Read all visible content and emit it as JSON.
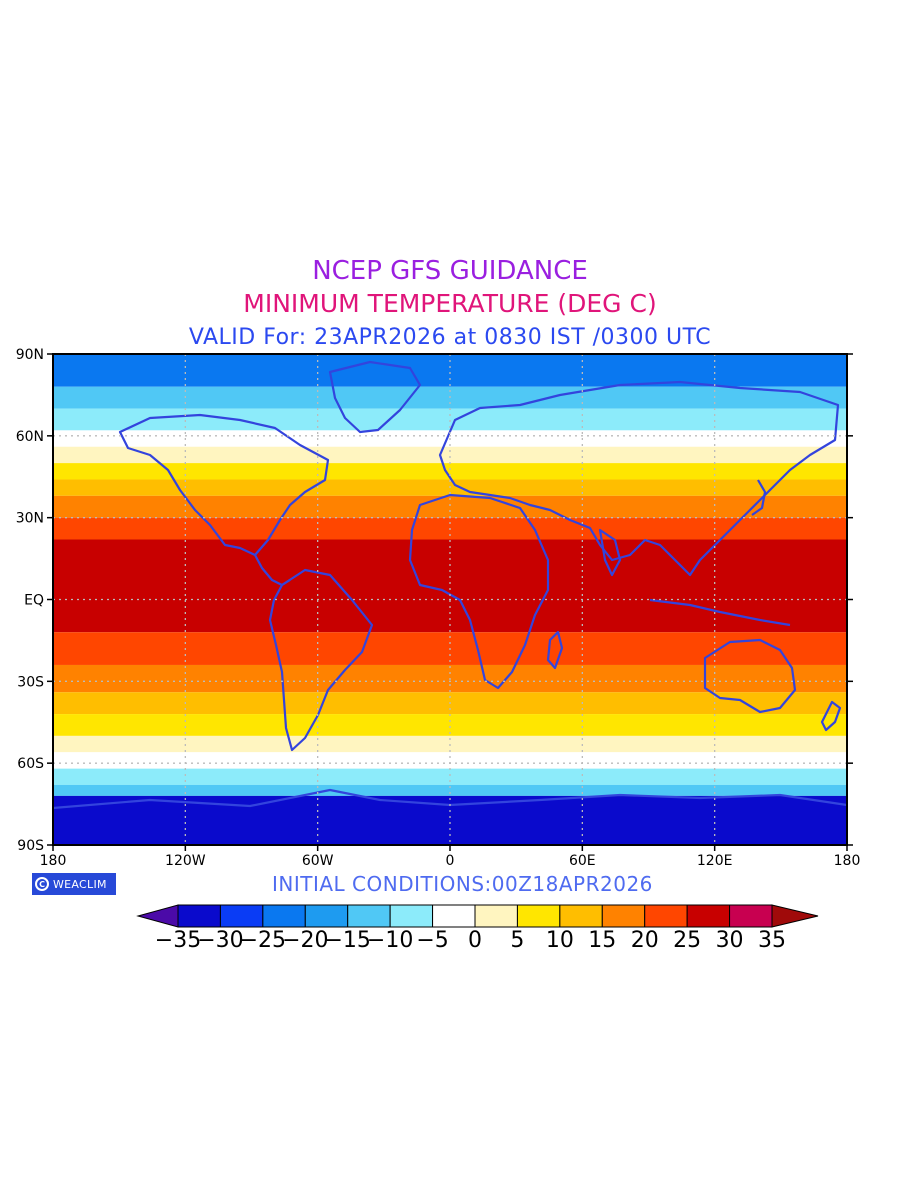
{
  "header": {
    "title": "NCEP GFS GUIDANCE",
    "subtitle": "MINIMUM TEMPERATURE (DEG C)",
    "valid": "VALID For: 23APR2026 at 0830 IST /0300 UTC",
    "title_color": "#9A1FE0",
    "subtitle_color": "#E0157A",
    "valid_color": "#2B49F0"
  },
  "axes": {
    "lat_labels": [
      "90N",
      "60N",
      "30N",
      "EQ",
      "30S",
      "60S",
      "90S"
    ],
    "lat_values": [
      90,
      60,
      30,
      0,
      -30,
      -60,
      -90
    ],
    "lon_labels": [
      "180",
      "120W",
      "60W",
      "0",
      "60E",
      "120E",
      "180"
    ],
    "lon_values": [
      -180,
      -120,
      -60,
      0,
      60,
      120,
      180
    ],
    "gridlines": "dotted"
  },
  "footer": {
    "initial_conditions": "INITIAL CONDITIONS:00Z18APR2026",
    "initial_color": "#4F6BF0",
    "brand": "WEACLIM",
    "brand_bg": "#2749D8"
  },
  "colorbar": {
    "labels": [
      "-35",
      "-30",
      "-25",
      "-20",
      "-15",
      "-10",
      "-5",
      "0",
      "5",
      "10",
      "15",
      "20",
      "25",
      "30",
      "35"
    ],
    "colors": [
      "#4B0AA8",
      "#0A0ACC",
      "#0A3CF5",
      "#0A78F0",
      "#1E9BF0",
      "#50C8F5",
      "#8CEBFA",
      "#FFFFFF",
      "#FFF5C0",
      "#FFE600",
      "#FFBE00",
      "#FF8200",
      "#FF4600",
      "#C80000",
      "#C80050",
      "#A00A0A"
    ]
  },
  "map": {
    "land_outline_color": "#3344DD",
    "temperature_bands": [
      {
        "lat_from": 90,
        "lat_to": 78,
        "value": -25
      },
      {
        "lat_from": 78,
        "lat_to": 70,
        "value": -15
      },
      {
        "lat_from": 70,
        "lat_to": 62,
        "value": -8
      },
      {
        "lat_from": 62,
        "lat_to": 56,
        "value": -2
      },
      {
        "lat_from": 56,
        "lat_to": 50,
        "value": 3
      },
      {
        "lat_from": 50,
        "lat_to": 44,
        "value": 8
      },
      {
        "lat_from": 44,
        "lat_to": 38,
        "value": 13
      },
      {
        "lat_from": 38,
        "lat_to": 30,
        "value": 18
      },
      {
        "lat_from": 30,
        "lat_to": 22,
        "value": 23
      },
      {
        "lat_from": 22,
        "lat_to": -12,
        "value": 27
      },
      {
        "lat_from": -12,
        "lat_to": -24,
        "value": 23
      },
      {
        "lat_from": -24,
        "lat_to": -34,
        "value": 18
      },
      {
        "lat_from": -34,
        "lat_to": -42,
        "value": 13
      },
      {
        "lat_from": -42,
        "lat_to": -50,
        "value": 8
      },
      {
        "lat_from": -50,
        "lat_to": -56,
        "value": 3
      },
      {
        "lat_from": -56,
        "lat_to": -62,
        "value": -2
      },
      {
        "lat_from": -62,
        "lat_to": -68,
        "value": -8
      },
      {
        "lat_from": -68,
        "lat_to": -72,
        "value": -15
      },
      {
        "lat_from": -72,
        "lat_to": -90,
        "value": -35
      }
    ]
  }
}
